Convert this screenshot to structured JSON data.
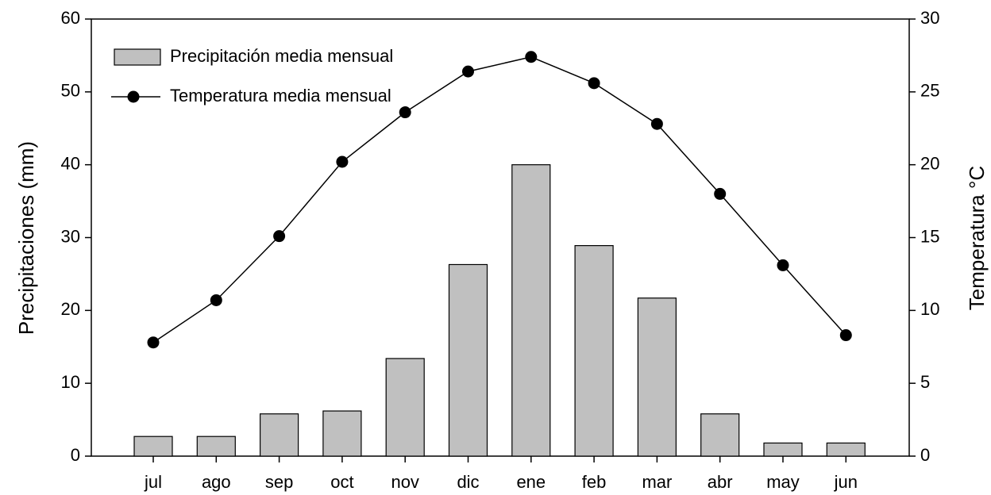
{
  "chart_data": {
    "type": "bar",
    "categories": [
      "jul",
      "ago",
      "sep",
      "oct",
      "nov",
      "dic",
      "ene",
      "feb",
      "mar",
      "abr",
      "may",
      "jun"
    ],
    "series": [
      {
        "name": "Precipitación media mensual",
        "type": "bar",
        "color": "#c0c0c0",
        "values": [
          2.7,
          2.7,
          5.8,
          6.2,
          13.4,
          26.3,
          40,
          28.9,
          21.7,
          5.8,
          1.8,
          1.8
        ]
      },
      {
        "name": "Temperatura media mensual",
        "type": "line",
        "axis": "y2",
        "color": "#000000",
        "values": [
          7.8,
          10.7,
          15.1,
          20.2,
          23.6,
          26.4,
          27.4,
          25.6,
          22.8,
          18.0,
          13.1,
          8.3
        ]
      }
    ],
    "y_label": "Precipitaciones (mm)",
    "y2_label": "Temperatura °C",
    "ylim": [
      0,
      60
    ],
    "yticks": [
      0,
      10,
      20,
      30,
      40,
      50,
      60
    ],
    "y2lim": [
      0,
      30
    ],
    "y2ticks": [
      0,
      5,
      10,
      15,
      20,
      25,
      30
    ],
    "grid": false,
    "legend": "upper left"
  }
}
